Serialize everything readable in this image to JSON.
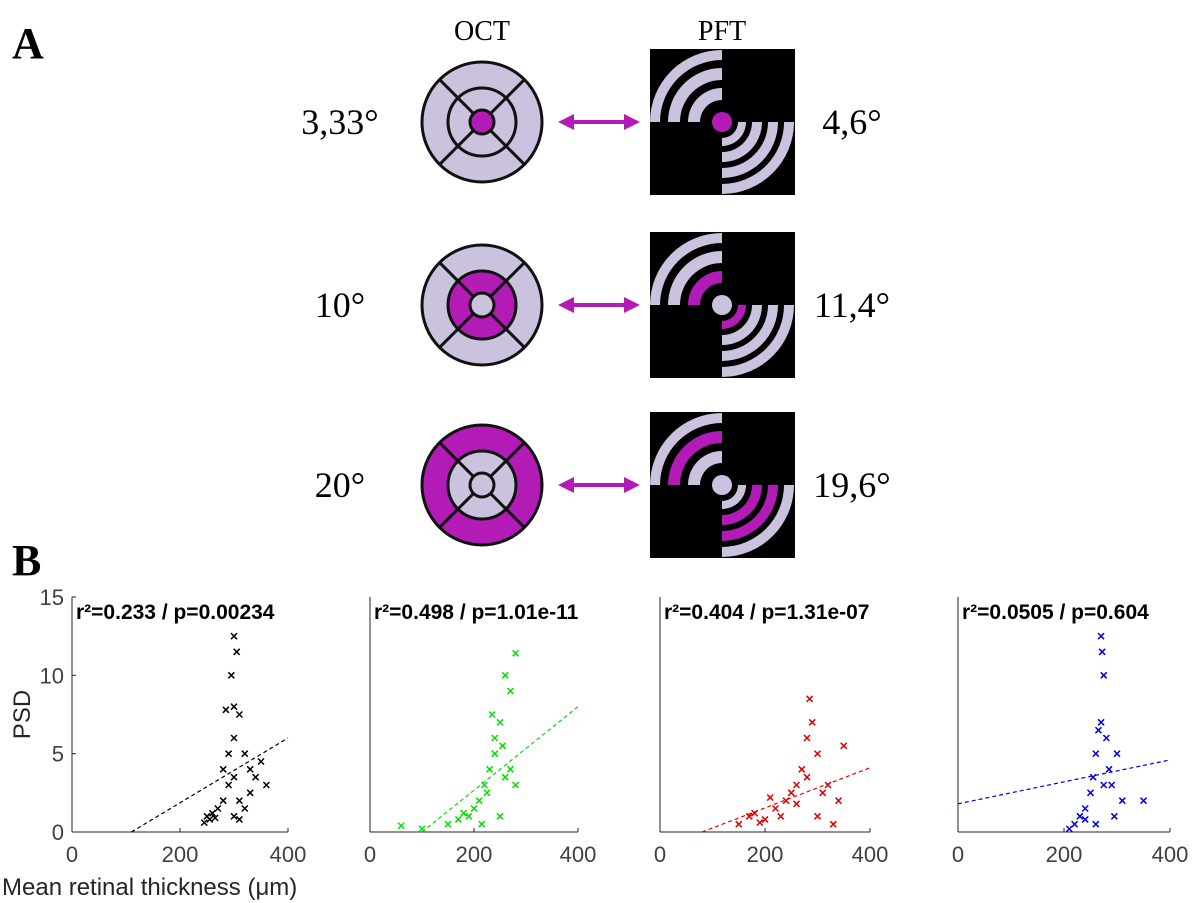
{
  "panel_a": {
    "label": "A",
    "columns": [
      "OCT",
      "PFT"
    ],
    "rows": [
      {
        "oct": "3,33°",
        "pft": "4,6°"
      },
      {
        "oct": "10°",
        "pft": "11,4°"
      },
      {
        "oct": "20°",
        "pft": "19,6°"
      }
    ]
  },
  "panel_b": {
    "label": "B"
  },
  "chart_data": [
    {
      "type": "scatter",
      "annotation": "r²=0.233 / p=0.00234",
      "ylabel": "PSD",
      "xlabel": "Mean retinal thickness (μm)",
      "xlim": [
        0,
        400
      ],
      "ylim": [
        0,
        15
      ],
      "xticks": [
        0,
        200,
        400
      ],
      "yticks": [
        0,
        5,
        10,
        15
      ],
      "series": [
        {
          "color": "#000000",
          "x": [
            250,
            255,
            260,
            245,
            265,
            270,
            280,
            290,
            300,
            305,
            295,
            300,
            310,
            285,
            300,
            320,
            330,
            340,
            350,
            310,
            320,
            300,
            280,
            290,
            330,
            360,
            300,
            310
          ],
          "y": [
            1,
            0.8,
            1.2,
            0.6,
            0.9,
            1.5,
            2,
            3,
            12.5,
            11.5,
            10,
            8,
            7.5,
            7.8,
            6,
            5,
            4,
            3.5,
            4.5,
            2,
            1.5,
            3.5,
            4,
            5,
            2.5,
            3,
            1,
            0.8
          ]
        }
      ],
      "fit": {
        "x": [
          110,
          400
        ],
        "y": [
          0,
          6
        ]
      }
    },
    {
      "type": "scatter",
      "annotation": "r²=0.498 / p=1.01e-11",
      "xlim": [
        0,
        400
      ],
      "ylim": [
        0,
        15
      ],
      "xticks": [
        0,
        200,
        400
      ],
      "series": [
        {
          "color": "#00e000",
          "x": [
            60,
            100,
            150,
            170,
            190,
            200,
            210,
            220,
            230,
            240,
            250,
            260,
            270,
            280,
            240,
            225,
            250,
            260,
            270,
            280,
            215,
            235,
            255,
            180
          ],
          "y": [
            0.4,
            0.2,
            0.5,
            0.8,
            1,
            1.5,
            2,
            3,
            4,
            6,
            7,
            10,
            9,
            11.4,
            5,
            2.5,
            1,
            3.5,
            4,
            3,
            0.5,
            7.5,
            5.5,
            1.2
          ]
        }
      ],
      "fit": {
        "x": [
          100,
          400
        ],
        "y": [
          0,
          8
        ]
      }
    },
    {
      "type": "scatter",
      "annotation": "r²=0.404 / p=1.31e-07",
      "xlim": [
        0,
        400
      ],
      "ylim": [
        0,
        15
      ],
      "xticks": [
        0,
        200,
        400
      ],
      "series": [
        {
          "color": "#e00000",
          "x": [
            150,
            170,
            180,
            200,
            220,
            240,
            250,
            260,
            270,
            280,
            285,
            290,
            300,
            320,
            340,
            350,
            330,
            310,
            230,
            260,
            280,
            300,
            210,
            190
          ],
          "y": [
            0.5,
            1,
            1.2,
            0.8,
            1.5,
            2,
            2.5,
            3,
            4,
            6,
            8.5,
            7,
            5,
            3,
            2,
            5.5,
            0.5,
            2.5,
            1,
            1.8,
            3.5,
            1,
            2.2,
            0.6
          ]
        }
      ],
      "fit": {
        "x": [
          80,
          400
        ],
        "y": [
          0,
          4.1
        ]
      }
    },
    {
      "type": "scatter",
      "annotation": "r²=0.0505 / p=0.604",
      "xlim": [
        0,
        400
      ],
      "ylim": [
        0,
        15
      ],
      "xticks": [
        0,
        200,
        400
      ],
      "series": [
        {
          "color": "#0000e0",
          "x": [
            210,
            220,
            230,
            240,
            250,
            255,
            260,
            265,
            270,
            270,
            272,
            275,
            280,
            285,
            290,
            300,
            310,
            350,
            240,
            260,
            275,
            295
          ],
          "y": [
            0.2,
            0.5,
            1,
            1.5,
            2.5,
            3.5,
            5,
            6.5,
            7,
            12.5,
            11.5,
            10,
            6,
            4,
            3,
            5,
            2,
            2,
            0.8,
            0.5,
            3,
            1
          ]
        }
      ],
      "fit": {
        "x": [
          0,
          400
        ],
        "y": [
          1.8,
          4.6
        ]
      }
    }
  ]
}
